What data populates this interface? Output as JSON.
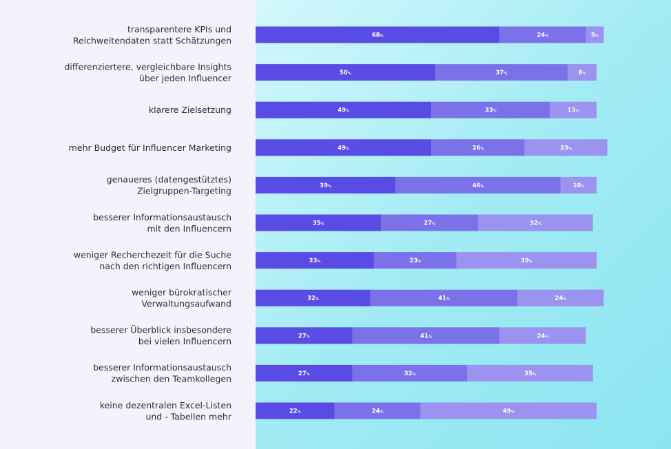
{
  "chart_data": {
    "type": "bar",
    "orientation": "horizontal",
    "stacked": true,
    "categories": [
      [
        "transparentere KPIs und",
        "Reichweitendaten statt Schätzungen"
      ],
      [
        "differenziertere, vergleichbare Insights",
        "über jeden Influencer"
      ],
      [
        "klarere Zielsetzung"
      ],
      [
        "mehr Budget für Influencer Marketing"
      ],
      [
        "genaueres (datengestütztes)",
        "Zielgruppen-Targeting"
      ],
      [
        "besserer Informationsaustausch",
        "mit den Influencern"
      ],
      [
        "weniger Recherchezeit für die Suche",
        "nach den richtigen Influencern"
      ],
      [
        "weniger bürokratischer",
        "Verwaltungsaufwand"
      ],
      [
        "besserer Überblick insbesondere",
        "bei vielen Influencern"
      ],
      [
        "besserer Informationsaustausch",
        "zwischen den Teamkollegen"
      ],
      [
        "keine dezentralen Excel-Listen",
        "und - Tabellen mehr"
      ]
    ],
    "series": [
      {
        "values": [
          68,
          50,
          49,
          49,
          39,
          35,
          33,
          32,
          27,
          27,
          22
        ],
        "color": "#584ce4"
      },
      {
        "values": [
          24,
          37,
          33,
          26,
          46,
          27,
          23,
          41,
          41,
          32,
          24
        ],
        "color": "#7b72ea"
      },
      {
        "values": [
          5,
          8,
          13,
          23,
          10,
          32,
          39,
          24,
          24,
          35,
          49
        ],
        "color": "#9b93ef"
      }
    ],
    "value_suffix": "%",
    "xlim": [
      0,
      100
    ],
    "grid": false,
    "legend": "none"
  }
}
